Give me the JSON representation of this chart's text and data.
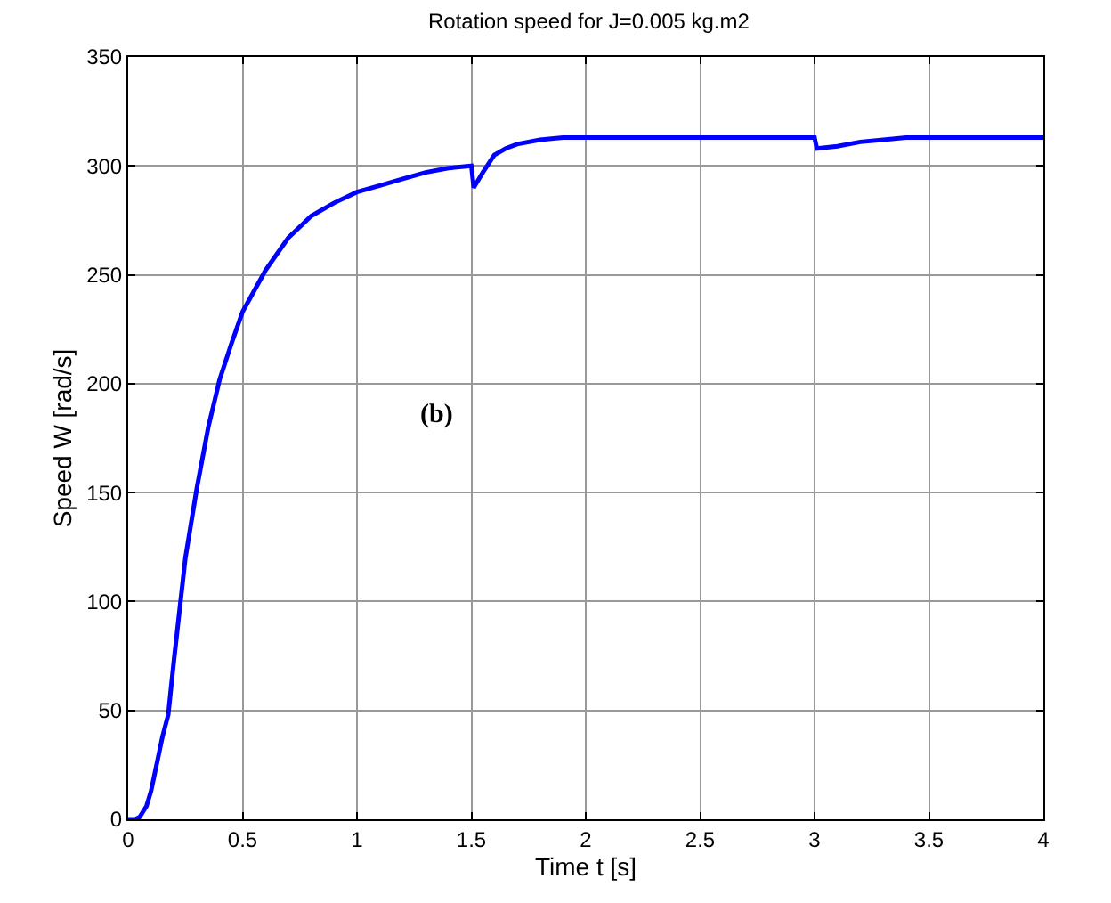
{
  "chart_data": {
    "type": "line",
    "title": "Rotation speed for J=0.005 kg.m2",
    "xlabel": "Time t [s]",
    "ylabel": "Speed W [rad/s]",
    "x": [
      0,
      0.03,
      0.05,
      0.08,
      0.1,
      0.13,
      0.15,
      0.175,
      0.2,
      0.25,
      0.3,
      0.35,
      0.4,
      0.45,
      0.5,
      0.6,
      0.7,
      0.8,
      0.9,
      1.0,
      1.1,
      1.2,
      1.3,
      1.4,
      1.5,
      1.51,
      1.55,
      1.6,
      1.65,
      1.7,
      1.8,
      1.9,
      2.0,
      2.5,
      3.0,
      3.01,
      3.1,
      3.2,
      3.3,
      3.4,
      3.5,
      4.0
    ],
    "series": [
      {
        "color": "#0000ff",
        "values": [
          0,
          0,
          1,
          6,
          13,
          28,
          38,
          48,
          73,
          120,
          152,
          180,
          202,
          218,
          233,
          252,
          267,
          277,
          283,
          288,
          291,
          294,
          297,
          299,
          300,
          290,
          297,
          305,
          308,
          310,
          312,
          313,
          313,
          313,
          313,
          308,
          309,
          311,
          312,
          313,
          313,
          313
        ]
      }
    ],
    "xlim": [
      0,
      4
    ],
    "xticks": [
      0,
      0.5,
      1,
      1.5,
      2,
      2.5,
      3,
      3.5,
      4
    ],
    "ylim": [
      0,
      350
    ],
    "yticks": [
      0,
      50,
      100,
      150,
      200,
      250,
      300,
      350
    ],
    "grid": true,
    "marker": "none",
    "line_style": "solid",
    "annotations": [
      "(b)"
    ]
  }
}
